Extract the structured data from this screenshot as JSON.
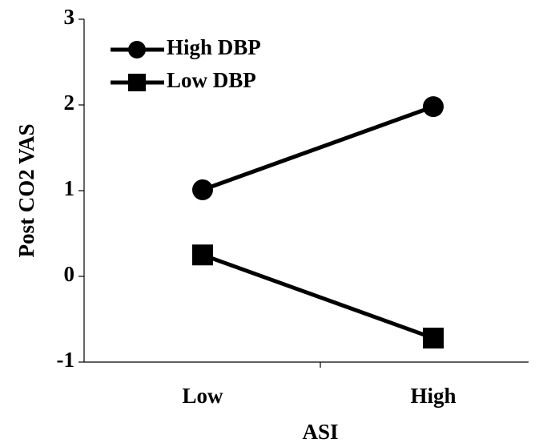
{
  "chart_data": {
    "type": "line",
    "title": "",
    "xlabel": "ASI",
    "ylabel": "Post CO2 VAS",
    "categories": [
      "Low",
      "High"
    ],
    "ylim": [
      -1,
      3
    ],
    "yticks": [
      3,
      2,
      1,
      0,
      -1
    ],
    "grid": false,
    "legend_position": "top-left",
    "series": [
      {
        "name": "High DBP",
        "marker": "circle",
        "values": [
          1.01,
          1.98
        ],
        "color": "#000000"
      },
      {
        "name": "Low DBP",
        "marker": "square",
        "values": [
          0.25,
          -0.72
        ],
        "color": "#000000"
      }
    ]
  }
}
